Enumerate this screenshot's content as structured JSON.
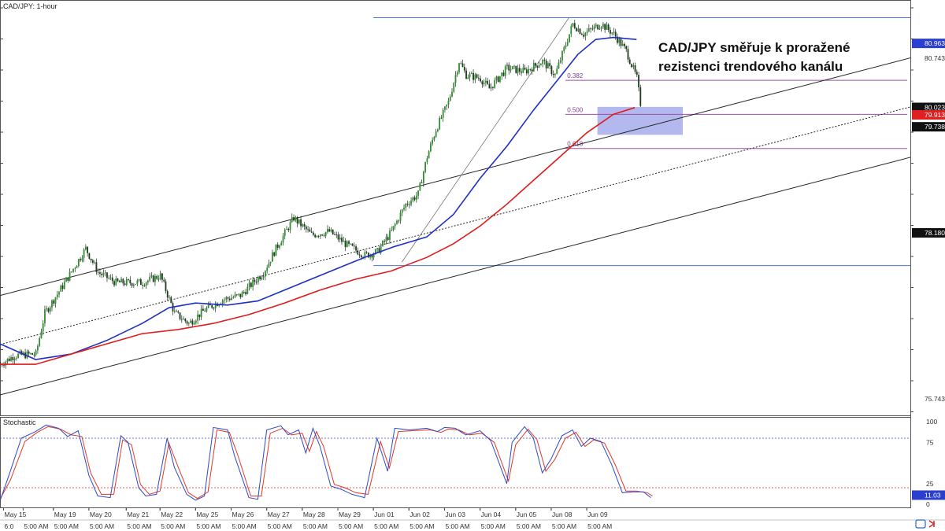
{
  "chart_data": {
    "type": "candlestick",
    "symbol_label": "CAD/JPY: 1-hour",
    "headline": [
      "CAD/JPY směřuje k proražené",
      "rezistenci trendového kanálu"
    ],
    "price_axis": {
      "range": [
        75.5,
        81.6
      ],
      "labels": [
        {
          "text": "80.743",
          "value": 80.743
        },
        {
          "text": "79.738",
          "value": 79.738
        },
        {
          "text": "75.743",
          "value": 75.743
        }
      ]
    },
    "price_tags": [
      {
        "text": "80.963",
        "value": 80.963,
        "color": "#2a3fd0"
      },
      {
        "text": "80.023",
        "value": 80.023,
        "color": "#111111"
      },
      {
        "text": "79.913",
        "value": 79.913,
        "color": "#e02020"
      },
      {
        "text": "79.738",
        "value": 79.738,
        "color": "#111111"
      },
      {
        "text": "78.180",
        "value": 78.18,
        "color": "#111111"
      }
    ],
    "horizontal_levels": [
      {
        "value": 81.34,
        "color": "#4b74c9",
        "t_start": 210
      },
      {
        "value": 77.7,
        "color": "#4b74c9",
        "t_start": 210
      }
    ],
    "fib_levels": [
      {
        "label": "0.382",
        "value": 80.42
      },
      {
        "label": "0.500",
        "value": 79.92
      },
      {
        "label": "0.618",
        "value": 79.42
      }
    ],
    "highlight_zone": {
      "t_start": 336,
      "t_end": 384,
      "price_top": 80.03,
      "price_bottom": 79.62,
      "color": "#9aa0e8"
    },
    "channel": {
      "upper": [
        [
          0,
          77.26
        ],
        [
          512,
          80.75
        ]
      ],
      "middle": [
        [
          0,
          76.54
        ],
        [
          512,
          80.03
        ]
      ],
      "lower": [
        [
          0,
          75.8
        ],
        [
          512,
          79.29
        ]
      ]
    },
    "trend_line": [
      [
        226,
        77.75
      ],
      [
        320,
        81.34
      ]
    ],
    "series": [
      {
        "name": "",
        "type": "sma_100",
        "color": "#1f2fc4",
        "points": [
          [
            0,
            76.55
          ],
          [
            20,
            76.32
          ],
          [
            40,
            76.4
          ],
          [
            60,
            76.6
          ],
          [
            80,
            76.85
          ],
          [
            95,
            77.08
          ],
          [
            110,
            77.15
          ],
          [
            128,
            77.12
          ],
          [
            145,
            77.18
          ],
          [
            160,
            77.34
          ],
          [
            175,
            77.5
          ],
          [
            190,
            77.66
          ],
          [
            205,
            77.82
          ],
          [
            222,
            77.98
          ],
          [
            240,
            78.12
          ],
          [
            255,
            78.45
          ],
          [
            270,
            78.98
          ],
          [
            285,
            79.45
          ],
          [
            300,
            79.98
          ],
          [
            315,
            80.47
          ],
          [
            325,
            80.8
          ],
          [
            335,
            81.02
          ],
          [
            345,
            81.05
          ],
          [
            358,
            81.02
          ]
        ]
      },
      {
        "name": "",
        "type": "sma_200",
        "color": "#e01b1b",
        "points": [
          [
            0,
            76.25
          ],
          [
            20,
            76.25
          ],
          [
            40,
            76.4
          ],
          [
            60,
            76.55
          ],
          [
            80,
            76.7
          ],
          [
            100,
            76.76
          ],
          [
            120,
            76.85
          ],
          [
            140,
            76.98
          ],
          [
            160,
            77.15
          ],
          [
            180,
            77.34
          ],
          [
            200,
            77.5
          ],
          [
            220,
            77.62
          ],
          [
            240,
            77.82
          ],
          [
            255,
            78.02
          ],
          [
            270,
            78.28
          ],
          [
            285,
            78.6
          ],
          [
            300,
            78.95
          ],
          [
            315,
            79.3
          ],
          [
            330,
            79.65
          ],
          [
            345,
            79.92
          ],
          [
            357,
            80.02
          ]
        ]
      }
    ],
    "close_path": [
      [
        0,
        76.25
      ],
      [
        8,
        76.38
      ],
      [
        20,
        76.4
      ],
      [
        25,
        77.0
      ],
      [
        35,
        77.4
      ],
      [
        48,
        77.95
      ],
      [
        55,
        77.6
      ],
      [
        65,
        77.45
      ],
      [
        80,
        77.45
      ],
      [
        90,
        77.55
      ],
      [
        98,
        77.0
      ],
      [
        106,
        76.85
      ],
      [
        115,
        77.05
      ],
      [
        125,
        77.2
      ],
      [
        135,
        77.26
      ],
      [
        148,
        77.6
      ],
      [
        155,
        77.95
      ],
      [
        165,
        78.4
      ],
      [
        175,
        78.15
      ],
      [
        185,
        78.2
      ],
      [
        195,
        78.0
      ],
      [
        205,
        77.85
      ],
      [
        212,
        77.9
      ],
      [
        220,
        78.2
      ],
      [
        228,
        78.6
      ],
      [
        235,
        78.75
      ],
      [
        240,
        79.3
      ],
      [
        245,
        79.7
      ],
      [
        252,
        80.1
      ],
      [
        258,
        80.7
      ],
      [
        262,
        80.5
      ],
      [
        270,
        80.45
      ],
      [
        275,
        80.3
      ],
      [
        285,
        80.6
      ],
      [
        295,
        80.55
      ],
      [
        305,
        80.7
      ],
      [
        312,
        80.5
      ],
      [
        318,
        80.95
      ],
      [
        322,
        81.25
      ],
      [
        328,
        81.1
      ],
      [
        338,
        81.25
      ],
      [
        345,
        81.1
      ],
      [
        352,
        80.85
      ],
      [
        358,
        80.45
      ],
      [
        360,
        80.08
      ]
    ],
    "stochastic": {
      "label": "Stochastic",
      "axis_labels": [
        "100",
        "75",
        "25",
        "0"
      ],
      "levels": [
        {
          "value": 80,
          "color": "#3b4cc0"
        },
        {
          "value": 20,
          "color": "#d83030"
        }
      ],
      "tags": [
        {
          "text": "11.03",
          "value": 11.03
        }
      ],
      "k_points": [
        [
          0,
          4
        ],
        [
          5,
          35
        ],
        [
          12,
          80
        ],
        [
          20,
          88
        ],
        [
          26,
          96
        ],
        [
          33,
          92
        ],
        [
          38,
          82
        ],
        [
          44,
          89
        ],
        [
          50,
          35
        ],
        [
          55,
          10
        ],
        [
          62,
          8
        ],
        [
          68,
          83
        ],
        [
          72,
          75
        ],
        [
          78,
          20
        ],
        [
          82,
          10
        ],
        [
          88,
          12
        ],
        [
          94,
          80
        ],
        [
          98,
          45
        ],
        [
          105,
          12
        ],
        [
          110,
          5
        ],
        [
          115,
          10
        ],
        [
          120,
          93
        ],
        [
          128,
          90
        ],
        [
          132,
          58
        ],
        [
          140,
          8
        ],
        [
          145,
          6
        ],
        [
          150,
          90
        ],
        [
          158,
          95
        ],
        [
          162,
          84
        ],
        [
          168,
          90
        ],
        [
          172,
          62
        ],
        [
          176,
          92
        ],
        [
          180,
          70
        ],
        [
          186,
          22
        ],
        [
          192,
          18
        ],
        [
          198,
          12
        ],
        [
          205,
          8
        ],
        [
          212,
          80
        ],
        [
          218,
          40
        ],
        [
          222,
          92
        ],
        [
          230,
          90
        ],
        [
          240,
          92
        ],
        [
          246,
          88
        ],
        [
          250,
          93
        ],
        [
          256,
          92
        ],
        [
          262,
          84
        ],
        [
          270,
          89
        ],
        [
          276,
          77
        ],
        [
          285,
          25
        ],
        [
          288,
          75
        ],
        [
          295,
          94
        ],
        [
          300,
          80
        ],
        [
          305,
          38
        ],
        [
          310,
          55
        ],
        [
          316,
          83
        ],
        [
          322,
          90
        ],
        [
          327,
          70
        ],
        [
          332,
          80
        ],
        [
          338,
          76
        ],
        [
          344,
          48
        ],
        [
          350,
          14
        ],
        [
          356,
          15
        ],
        [
          362,
          15
        ],
        [
          366,
          8
        ]
      ],
      "d_points": [
        [
          0,
          6
        ],
        [
          6,
          30
        ],
        [
          14,
          76
        ],
        [
          21,
          87
        ],
        [
          27,
          94
        ],
        [
          34,
          91
        ],
        [
          40,
          84
        ],
        [
          46,
          82
        ],
        [
          51,
          38
        ],
        [
          57,
          12
        ],
        [
          64,
          12
        ],
        [
          69,
          78
        ],
        [
          74,
          72
        ],
        [
          79,
          24
        ],
        [
          84,
          12
        ],
        [
          90,
          16
        ],
        [
          95,
          74
        ],
        [
          100,
          46
        ],
        [
          106,
          14
        ],
        [
          111,
          7
        ],
        [
          117,
          15
        ],
        [
          122,
          90
        ],
        [
          129,
          87
        ],
        [
          134,
          58
        ],
        [
          141,
          10
        ],
        [
          147,
          10
        ],
        [
          152,
          86
        ],
        [
          159,
          92
        ],
        [
          164,
          84
        ],
        [
          170,
          86
        ],
        [
          174,
          64
        ],
        [
          178,
          88
        ],
        [
          182,
          70
        ],
        [
          188,
          24
        ],
        [
          194,
          20
        ],
        [
          200,
          14
        ],
        [
          207,
          12
        ],
        [
          214,
          76
        ],
        [
          219,
          44
        ],
        [
          224,
          88
        ],
        [
          232,
          89
        ],
        [
          242,
          90
        ],
        [
          248,
          87
        ],
        [
          252,
          91
        ],
        [
          258,
          90
        ],
        [
          264,
          84
        ],
        [
          271,
          86
        ],
        [
          278,
          75
        ],
        [
          286,
          28
        ],
        [
          290,
          72
        ],
        [
          297,
          91
        ],
        [
          302,
          78
        ],
        [
          307,
          40
        ],
        [
          312,
          54
        ],
        [
          318,
          80
        ],
        [
          324,
          87
        ],
        [
          329,
          70
        ],
        [
          334,
          78
        ],
        [
          340,
          74
        ],
        [
          346,
          48
        ],
        [
          352,
          16
        ],
        [
          358,
          16
        ],
        [
          364,
          14
        ],
        [
          367,
          10
        ]
      ]
    },
    "x_axis": {
      "labels": [
        {
          "text": "May 15",
          "t": 2,
          "row": 1
        },
        {
          "text": "6:0",
          "t": 2,
          "row": 2
        },
        {
          "text": "5:00 AM",
          "t": 13,
          "row": 2
        },
        {
          "text": "May 19",
          "t": 30,
          "row": 1
        },
        {
          "text": "5:00 AM",
          "t": 30,
          "row": 2
        },
        {
          "text": "May 20",
          "t": 50,
          "row": 1
        },
        {
          "text": "5:00 AM",
          "t": 50,
          "row": 2
        },
        {
          "text": "May 21",
          "t": 71,
          "row": 1
        },
        {
          "text": "5:00 AM",
          "t": 71,
          "row": 2
        },
        {
          "text": "May 22",
          "t": 90,
          "row": 1
        },
        {
          "text": "5:00 AM",
          "t": 90,
          "row": 2
        },
        {
          "text": "May 25",
          "t": 110,
          "row": 1
        },
        {
          "text": "5:00 AM",
          "t": 110,
          "row": 2
        },
        {
          "text": "May 26",
          "t": 130,
          "row": 1
        },
        {
          "text": "5:00 AM",
          "t": 130,
          "row": 2
        },
        {
          "text": "May 27",
          "t": 150,
          "row": 1
        },
        {
          "text": "5:00 AM",
          "t": 150,
          "row": 2
        },
        {
          "text": "May 28",
          "t": 170,
          "row": 1
        },
        {
          "text": "5:00 AM",
          "t": 170,
          "row": 2
        },
        {
          "text": "May 29",
          "t": 190,
          "row": 1
        },
        {
          "text": "5:00 AM",
          "t": 190,
          "row": 2
        },
        {
          "text": "Jun 01",
          "t": 210,
          "row": 1
        },
        {
          "text": "5:00 AM",
          "t": 210,
          "row": 2
        },
        {
          "text": "Jun 02",
          "t": 230,
          "row": 1
        },
        {
          "text": "5:00 AM",
          "t": 230,
          "row": 2
        },
        {
          "text": "Jun 03",
          "t": 250,
          "row": 1
        },
        {
          "text": "5:00 AM",
          "t": 250,
          "row": 2
        },
        {
          "text": "Jun 04",
          "t": 270,
          "row": 1
        },
        {
          "text": "5:00 AM",
          "t": 270,
          "row": 2
        },
        {
          "text": "Jun 05",
          "t": 290,
          "row": 1
        },
        {
          "text": "5:00 AM",
          "t": 290,
          "row": 2
        },
        {
          "text": "Jun 08",
          "t": 310,
          "row": 1
        },
        {
          "text": "5:00 AM",
          "t": 310,
          "row": 2
        },
        {
          "text": "Jun 09",
          "t": 330,
          "row": 1
        },
        {
          "text": "5:00 AM",
          "t": 330,
          "row": 2
        }
      ]
    },
    "colors": {
      "candle_up": "#2f8f2f",
      "candle_down": "#1f3a1f",
      "channel": "#222222",
      "fib": "#9b4fa8",
      "sr": "#4b74c9"
    }
  }
}
